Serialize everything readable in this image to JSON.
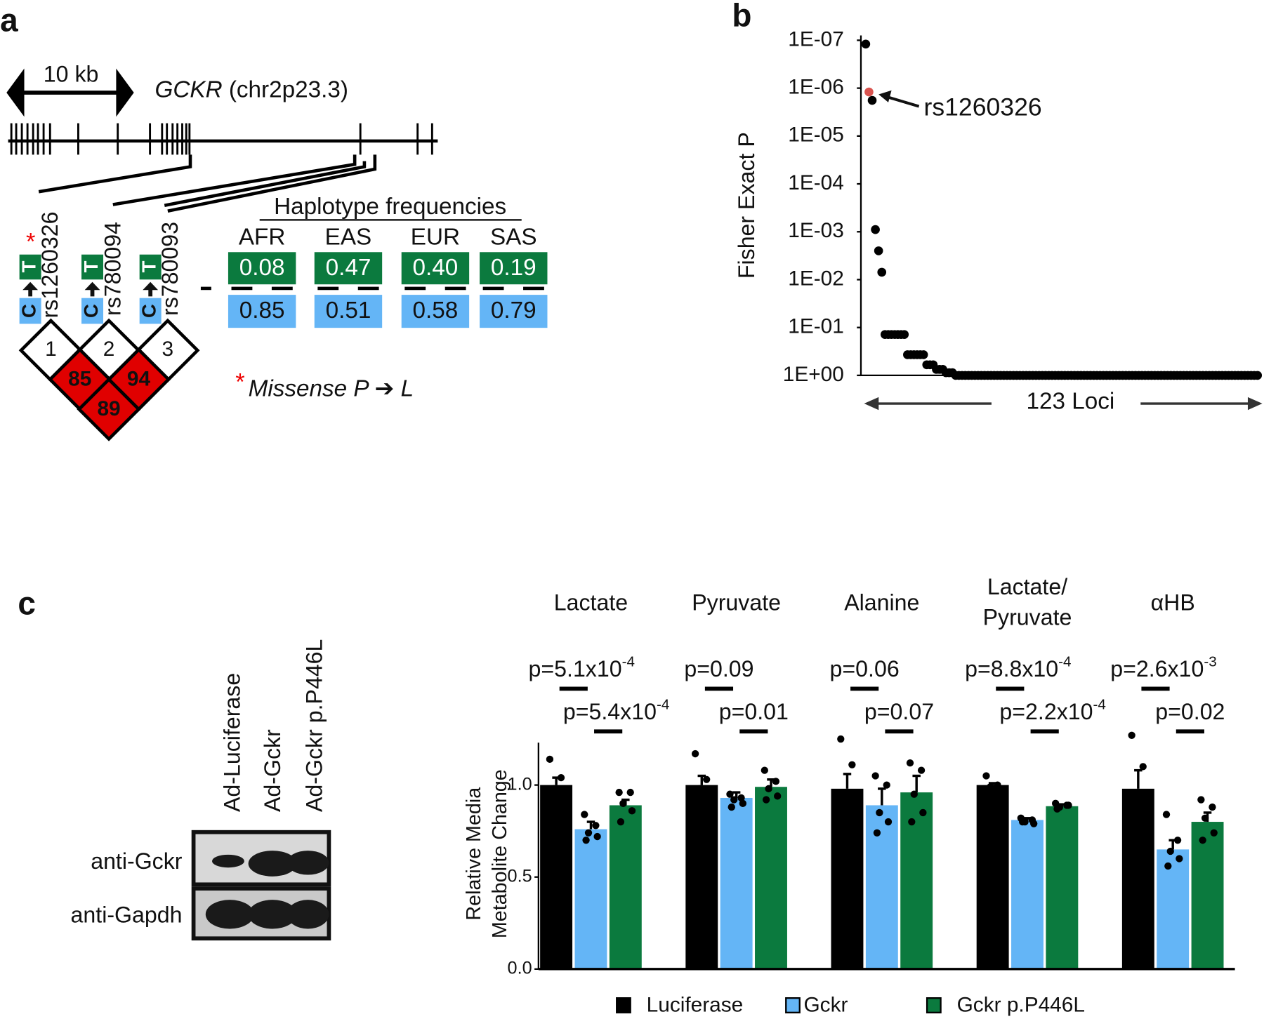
{
  "panel_labels": [
    "a",
    "b",
    "c"
  ],
  "diagram": {
    "scale_label": "10 kb",
    "gene": "GCKR",
    "locus": " (chr2p23.3)",
    "snps": [
      {
        "id": "rs1260326",
        "ref": "C",
        "alt": "T",
        "star": "*"
      },
      {
        "id": "rs780094",
        "ref": "C",
        "alt": "T"
      },
      {
        "id": "rs780093",
        "ref": "C",
        "alt": "T"
      }
    ],
    "haplotype_title": "Haplotype frequencies",
    "populations": [
      "AFR",
      "EAS",
      "EUR",
      "SAS"
    ],
    "alt_freqs": [
      "0.08",
      "0.47",
      "0.40",
      "0.19"
    ],
    "ref_freqs": [
      "0.85",
      "0.51",
      "0.58",
      "0.79"
    ],
    "ld_index": [
      "1",
      "2",
      "3"
    ],
    "ld_values": [
      85,
      94,
      89
    ],
    "note_star": "*",
    "note": "Missense  P ➔  L"
  },
  "blot": {
    "lanes": [
      "Ad-Luciferase",
      "Ad-Gckr",
      "Ad-Gckr p.P446L"
    ],
    "rows": [
      "anti-Gckr",
      "anti-Gapdh"
    ]
  },
  "chart_data": [
    {
      "type": "scatter",
      "y_label": "Fisher Exact P",
      "x_label": "123 Loci",
      "log_y": true,
      "ylim": [
        1,
        1e-07
      ],
      "yticks": [
        {
          "value": 1,
          "label": "1E+00"
        },
        {
          "value": 0.1,
          "label": "1E-01"
        },
        {
          "value": 0.01,
          "label": "1E-02"
        },
        {
          "value": 0.001,
          "label": "1E-03"
        },
        {
          "value": 0.0001,
          "label": "1E-04"
        },
        {
          "value": 1e-05,
          "label": "1E-05"
        },
        {
          "value": 1e-06,
          "label": "1E-06"
        },
        {
          "value": 1e-07,
          "label": "1E-07"
        }
      ],
      "color": "#000000",
      "annotation": {
        "text": "rs1260326",
        "index": 1,
        "color": "#d9534f"
      },
      "values": [
        1.2e-07,
        1.2e-06,
        1.8e-06,
        0.0009,
        0.0025,
        0.007,
        0.14,
        0.14,
        0.14,
        0.14,
        0.14,
        0.14,
        0.14,
        0.37,
        0.37,
        0.37,
        0.37,
        0.37,
        0.37,
        0.6,
        0.6,
        0.6,
        0.75,
        0.75,
        0.75,
        0.88,
        0.88,
        0.88,
        1,
        1,
        1,
        1,
        1,
        1,
        1,
        1,
        1,
        1,
        1,
        1,
        1,
        1,
        1,
        1,
        1,
        1,
        1,
        1,
        1,
        1,
        1,
        1,
        1,
        1,
        1,
        1,
        1,
        1,
        1,
        1,
        1,
        1,
        1,
        1,
        1,
        1,
        1,
        1,
        1,
        1,
        1,
        1,
        1,
        1,
        1,
        1,
        1,
        1,
        1,
        1,
        1,
        1,
        1,
        1,
        1,
        1,
        1,
        1,
        1,
        1,
        1,
        1,
        1,
        1,
        1,
        1,
        1,
        1,
        1,
        1,
        1,
        1,
        1,
        1,
        1,
        1,
        1,
        1,
        1,
        1,
        1,
        1,
        1,
        1,
        1,
        1,
        1,
        1,
        1,
        1,
        1,
        1,
        1
      ]
    },
    {
      "type": "bar",
      "y_label": "Relative Media\nMetabolite Change",
      "categories": [
        "Lactate",
        "Pyruvate",
        "Alanine",
        "Lactate/\nPyruvate",
        "αHB"
      ],
      "ylim": [
        0,
        1.23
      ],
      "yticks": [
        {
          "value": 0,
          "label": "0.0"
        },
        0.5,
        {
          "value": 1,
          "label": "1.0"
        }
      ],
      "legend": "bottom",
      "series": [
        {
          "name": "Luciferase",
          "color": "#000000",
          "values": [
            1.0,
            1.0,
            0.98,
            1.0,
            0.98
          ],
          "errors": [
            0.04,
            0.05,
            0.08,
            0.01,
            0.1
          ],
          "points": [
            [
              1.14,
              1.04,
              0.98,
              0.96,
              0.92
            ],
            [
              1.17,
              1.03,
              0.98,
              0.96,
              0.9
            ],
            [
              1.25,
              1.11,
              0.95,
              0.91,
              0.86
            ],
            [
              1.05,
              1.0,
              0.99,
              0.98,
              0.97
            ],
            [
              1.27,
              1.1,
              0.92,
              0.88,
              0.82
            ]
          ]
        },
        {
          "name": "Gckr",
          "color": "#64b5f6",
          "values": [
            0.76,
            0.93,
            0.89,
            0.81,
            0.65
          ],
          "errors": [
            0.04,
            0.03,
            0.09,
            0.01,
            0.05
          ],
          "points": [
            [
              0.84,
              0.78,
              0.74,
              0.72,
              0.7
            ],
            [
              0.95,
              0.93,
              0.92,
              0.9,
              0.88
            ],
            [
              1.05,
              1.0,
              0.85,
              0.8,
              0.74
            ],
            [
              0.82,
              0.81,
              0.8,
              0.79,
              0.8
            ],
            [
              0.84,
              0.7,
              0.64,
              0.6,
              0.56
            ]
          ]
        },
        {
          "name": "Gckr p.P446L",
          "color": "#0b7a3e",
          "values": [
            0.89,
            0.99,
            0.96,
            0.885,
            0.8
          ],
          "errors": [
            0.03,
            0.04,
            0.09,
            0.01,
            0.05
          ],
          "points": [
            [
              0.96,
              0.96,
              0.9,
              0.86,
              0.8
            ],
            [
              1.08,
              1.02,
              0.98,
              0.94,
              0.92
            ],
            [
              1.12,
              1.08,
              0.95,
              0.85,
              0.8
            ],
            [
              0.9,
              0.89,
              0.88,
              0.89,
              0.87
            ],
            [
              0.92,
              0.88,
              0.82,
              0.74,
              0.7
            ]
          ]
        }
      ],
      "comparisons": [
        [
          {
            "label": "p=5.1x10",
            "sup": "-4"
          },
          {
            "label": "p=5.4x10",
            "sup": "-4"
          }
        ],
        [
          {
            "label": "p=0.09"
          },
          {
            "label": "p=0.01"
          }
        ],
        [
          {
            "label": "p=0.06"
          },
          {
            "label": "p=0.07"
          }
        ],
        [
          {
            "label": "p=8.8x10",
            "sup": "-4"
          },
          {
            "label": "p=2.2x10",
            "sup": "-4"
          }
        ],
        [
          {
            "label": "p=2.6x10",
            "sup": "-3"
          },
          {
            "label": "p=0.02"
          }
        ]
      ]
    }
  ]
}
